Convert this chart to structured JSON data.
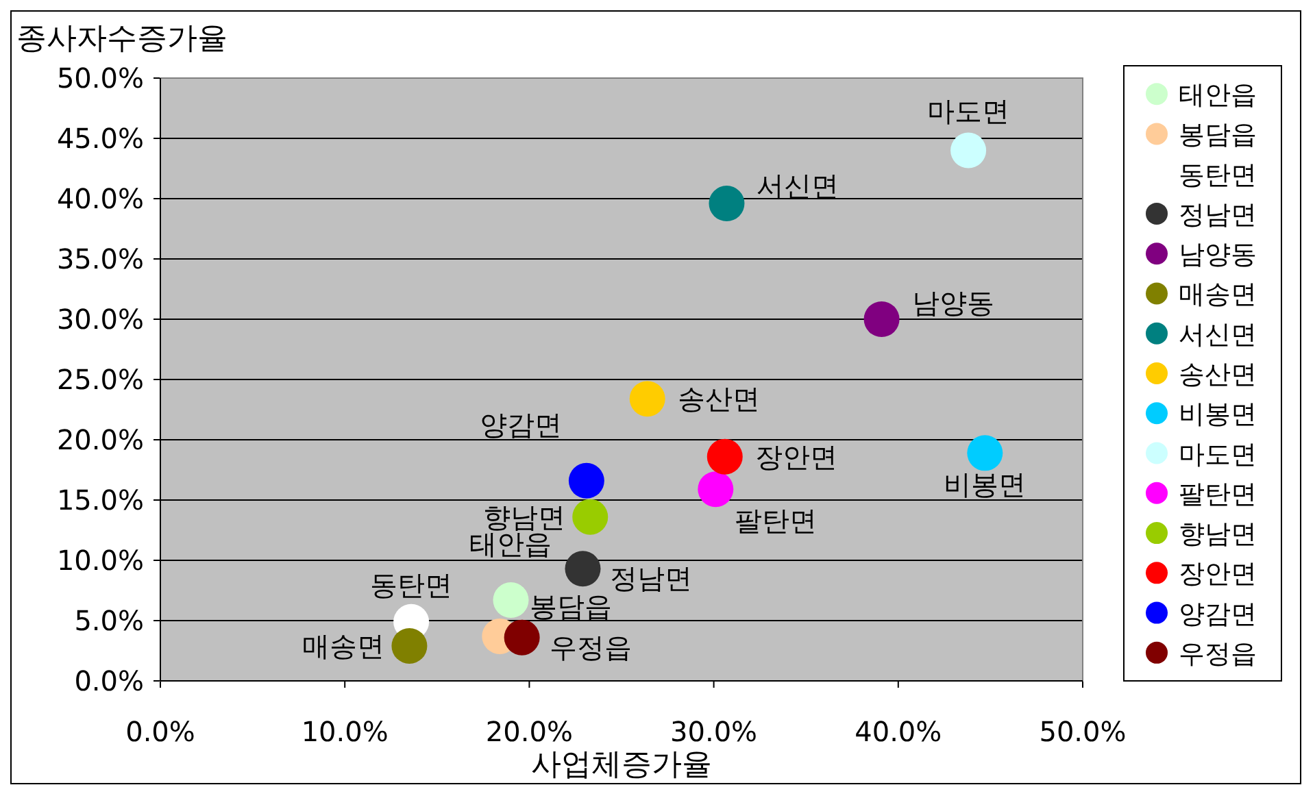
{
  "chart_data": {
    "type": "scatter",
    "xlabel": "사업체증가율",
    "ylabel": "종사자수증가율",
    "xlim": [
      0,
      50
    ],
    "ylim": [
      0,
      50
    ],
    "xticks": [
      {
        "value": 0,
        "label": "0.0%"
      },
      {
        "value": 10,
        "label": "10.0%"
      },
      {
        "value": 20,
        "label": "20.0%"
      },
      {
        "value": 30,
        "label": "30.0%"
      },
      {
        "value": 40,
        "label": "40.0%"
      },
      {
        "value": 50,
        "label": "50.0%"
      }
    ],
    "yticks": [
      {
        "value": 0,
        "label": "0.0%"
      },
      {
        "value": 5,
        "label": "5.0%"
      },
      {
        "value": 10,
        "label": "10.0%"
      },
      {
        "value": 15,
        "label": "15.0%"
      },
      {
        "value": 20,
        "label": "20.0%"
      },
      {
        "value": 25,
        "label": "25.0%"
      },
      {
        "value": 30,
        "label": "30.0%"
      },
      {
        "value": 35,
        "label": "35.0%"
      },
      {
        "value": 40,
        "label": "40.0%"
      },
      {
        "value": 45,
        "label": "45.0%"
      },
      {
        "value": 50,
        "label": "50.0%"
      }
    ],
    "grid": "y",
    "legend": "right",
    "marker": "circle",
    "series": [
      {
        "name": "태안읍",
        "color": "#ccffcc",
        "x": [
          19.0
        ],
        "values": [
          6.7
        ]
      },
      {
        "name": "봉담읍",
        "color": "#ffcc99",
        "x": [
          18.4
        ],
        "values": [
          3.7
        ]
      },
      {
        "name": "동탄면",
        "color": "#ffffff",
        "x": [
          13.6
        ],
        "values": [
          4.9
        ]
      },
      {
        "name": "정남면",
        "color": "#333333",
        "x": [
          22.9
        ],
        "values": [
          9.3
        ]
      },
      {
        "name": "남양동",
        "color": "#800080",
        "x": [
          39.1
        ],
        "values": [
          30.0
        ]
      },
      {
        "name": "매송면",
        "color": "#808000",
        "x": [
          13.5
        ],
        "values": [
          2.9
        ]
      },
      {
        "name": "서신면",
        "color": "#008080",
        "x": [
          30.7
        ],
        "values": [
          39.6
        ]
      },
      {
        "name": "송산면",
        "color": "#ffcc00",
        "x": [
          26.4
        ],
        "values": [
          23.4
        ]
      },
      {
        "name": "비봉면",
        "color": "#00ccff",
        "x": [
          44.7
        ],
        "values": [
          18.9
        ]
      },
      {
        "name": "마도면",
        "color": "#ccffff",
        "x": [
          43.8
        ],
        "values": [
          44.0
        ]
      },
      {
        "name": "팔탄면",
        "color": "#ff00ff",
        "x": [
          30.1
        ],
        "values": [
          15.9
        ]
      },
      {
        "name": "향남면",
        "color": "#99cc00",
        "x": [
          23.3
        ],
        "values": [
          13.6
        ]
      },
      {
        "name": "장안면",
        "color": "#ff0000",
        "x": [
          30.6
        ],
        "values": [
          18.6
        ]
      },
      {
        "name": "양감면",
        "color": "#0000ff",
        "x": [
          23.1
        ],
        "values": [
          16.6
        ]
      },
      {
        "name": "우정읍",
        "color": "#800000",
        "x": [
          19.6
        ],
        "values": [
          3.6
        ]
      }
    ]
  }
}
